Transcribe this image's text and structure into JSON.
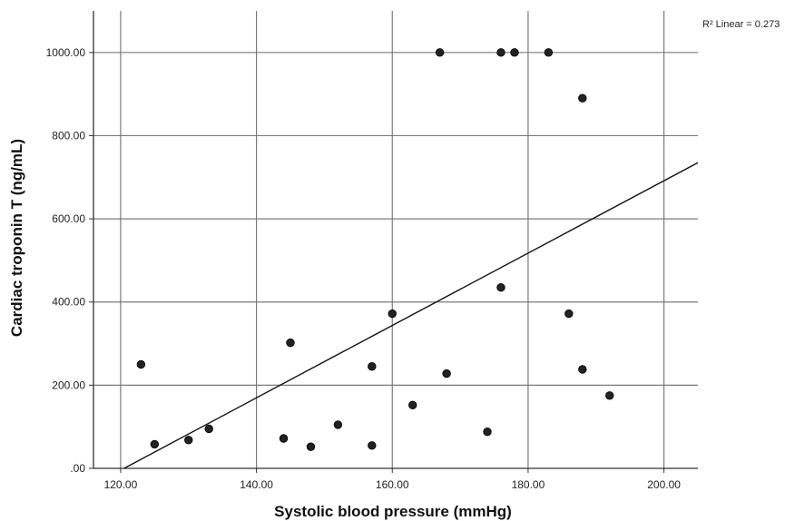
{
  "chart_data": {
    "type": "scatter",
    "title": "",
    "xlabel": "Systolic blood pressure (mmHg)",
    "ylabel": "Cardiac troponin T (ng/mL)",
    "xlim": [
      116,
      205
    ],
    "ylim": [
      0,
      1100
    ],
    "x_ticks": [
      120,
      140,
      160,
      180,
      200
    ],
    "x_tick_labels": [
      "120.00",
      "140.00",
      "160.00",
      "180.00",
      "200.00"
    ],
    "y_ticks": [
      0,
      200,
      400,
      600,
      800,
      1000
    ],
    "y_tick_labels": [
      ".00",
      "200.00",
      "400.00",
      "600.00",
      "800.00",
      "1000.00"
    ],
    "grid": true,
    "annotation": "R² Linear = 0.273",
    "point_color": "#222222",
    "line_color": "#111111",
    "points": [
      {
        "x": 123,
        "y": 250
      },
      {
        "x": 125,
        "y": 58
      },
      {
        "x": 130,
        "y": 68
      },
      {
        "x": 133,
        "y": 95
      },
      {
        "x": 144,
        "y": 72
      },
      {
        "x": 145,
        "y": 302
      },
      {
        "x": 148,
        "y": 52
      },
      {
        "x": 152,
        "y": 105
      },
      {
        "x": 157,
        "y": 245
      },
      {
        "x": 157,
        "y": 55
      },
      {
        "x": 160,
        "y": 372
      },
      {
        "x": 163,
        "y": 152
      },
      {
        "x": 167,
        "y": 1000
      },
      {
        "x": 168,
        "y": 228
      },
      {
        "x": 174,
        "y": 88
      },
      {
        "x": 176,
        "y": 1000
      },
      {
        "x": 176,
        "y": 435
      },
      {
        "x": 178,
        "y": 1000
      },
      {
        "x": 183,
        "y": 1000
      },
      {
        "x": 186,
        "y": 372
      },
      {
        "x": 188,
        "y": 890
      },
      {
        "x": 188,
        "y": 238
      },
      {
        "x": 192,
        "y": 175
      }
    ],
    "fit_line": {
      "x": [
        120.5,
        205
      ],
      "y": [
        0,
        735
      ]
    }
  }
}
